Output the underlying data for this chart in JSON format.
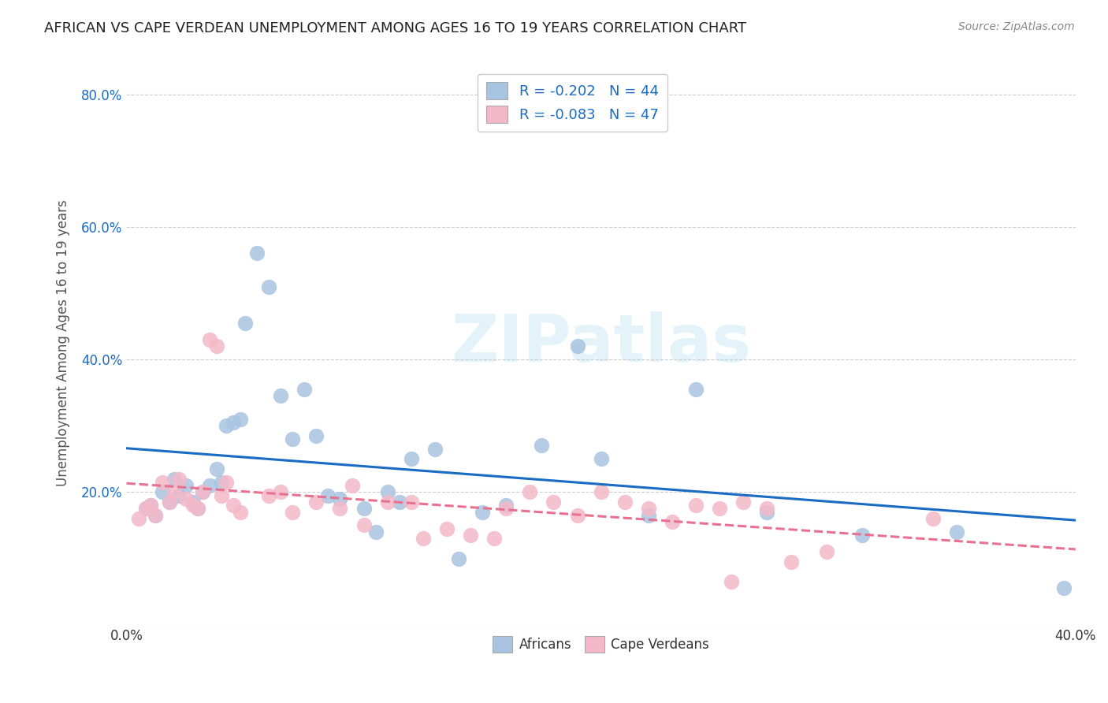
{
  "title": "AFRICAN VS CAPE VERDEAN UNEMPLOYMENT AMONG AGES 16 TO 19 YEARS CORRELATION CHART",
  "source": "Source: ZipAtlas.com",
  "ylabel": "Unemployment Among Ages 16 to 19 years",
  "xlim": [
    0.0,
    0.4
  ],
  "ylim": [
    0.0,
    0.85
  ],
  "xticks": [
    0.0,
    0.05,
    0.1,
    0.15,
    0.2,
    0.25,
    0.3,
    0.35,
    0.4
  ],
  "xticklabels": [
    "0.0%",
    "",
    "",
    "",
    "",
    "",
    "",
    "",
    "40.0%"
  ],
  "yticks": [
    0.0,
    0.2,
    0.4,
    0.6,
    0.8
  ],
  "yticklabels": [
    "",
    "20.0%",
    "40.0%",
    "60.0%",
    "80.0%"
  ],
  "grid_color": "#cccccc",
  "background_color": "#ffffff",
  "africans_color": "#a8c4e0",
  "cape_verdeans_color": "#f4b8c8",
  "line_african_color": "#1a6bc4",
  "line_cape_color": "#e87090",
  "watermark": "ZIPatlas",
  "legend_R_african": "R = -0.202",
  "legend_N_african": "N = 44",
  "legend_R_cape": "R = -0.083",
  "legend_N_cape": "N = 47",
  "africans_x": [
    0.008,
    0.01,
    0.012,
    0.015,
    0.018,
    0.02,
    0.022,
    0.025,
    0.028,
    0.03,
    0.032,
    0.035,
    0.038,
    0.04,
    0.042,
    0.045,
    0.048,
    0.05,
    0.055,
    0.06,
    0.065,
    0.07,
    0.075,
    0.08,
    0.085,
    0.09,
    0.1,
    0.105,
    0.11,
    0.115,
    0.12,
    0.13,
    0.14,
    0.15,
    0.16,
    0.175,
    0.19,
    0.2,
    0.22,
    0.24,
    0.27,
    0.31,
    0.35,
    0.395
  ],
  "africans_y": [
    0.175,
    0.18,
    0.165,
    0.2,
    0.185,
    0.22,
    0.195,
    0.21,
    0.185,
    0.175,
    0.2,
    0.21,
    0.235,
    0.215,
    0.3,
    0.305,
    0.31,
    0.455,
    0.56,
    0.51,
    0.345,
    0.28,
    0.355,
    0.285,
    0.195,
    0.19,
    0.175,
    0.14,
    0.2,
    0.185,
    0.25,
    0.265,
    0.1,
    0.17,
    0.18,
    0.27,
    0.42,
    0.25,
    0.165,
    0.355,
    0.17,
    0.135,
    0.14,
    0.055
  ],
  "cape_verdeans_x": [
    0.005,
    0.008,
    0.01,
    0.012,
    0.015,
    0.018,
    0.02,
    0.022,
    0.025,
    0.028,
    0.03,
    0.032,
    0.035,
    0.038,
    0.04,
    0.042,
    0.045,
    0.048,
    0.06,
    0.065,
    0.07,
    0.08,
    0.09,
    0.095,
    0.1,
    0.11,
    0.12,
    0.125,
    0.135,
    0.145,
    0.155,
    0.16,
    0.17,
    0.18,
    0.19,
    0.2,
    0.21,
    0.22,
    0.23,
    0.24,
    0.25,
    0.255,
    0.26,
    0.27,
    0.28,
    0.295,
    0.34
  ],
  "cape_verdeans_y": [
    0.16,
    0.175,
    0.18,
    0.165,
    0.215,
    0.185,
    0.2,
    0.22,
    0.19,
    0.18,
    0.175,
    0.2,
    0.43,
    0.42,
    0.195,
    0.215,
    0.18,
    0.17,
    0.195,
    0.2,
    0.17,
    0.185,
    0.175,
    0.21,
    0.15,
    0.185,
    0.185,
    0.13,
    0.145,
    0.135,
    0.13,
    0.175,
    0.2,
    0.185,
    0.165,
    0.2,
    0.185,
    0.175,
    0.155,
    0.18,
    0.175,
    0.065,
    0.185,
    0.175,
    0.095,
    0.11,
    0.16
  ]
}
